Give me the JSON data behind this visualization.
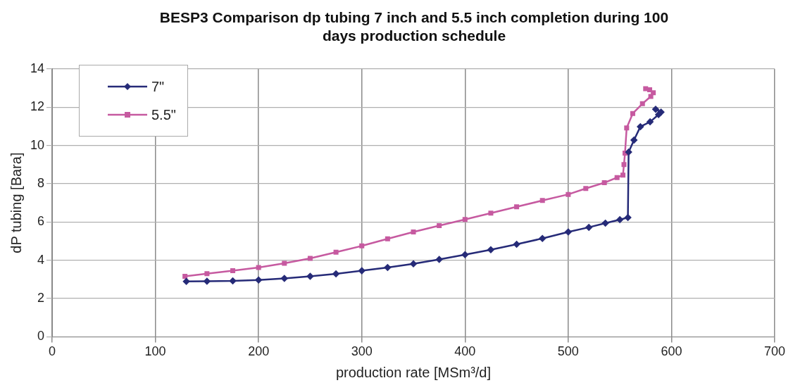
{
  "chart_data": {
    "type": "line",
    "title": "BESP3 Comparison dp tubing 7 inch and 5.5 inch completion during 100 days production schedule",
    "xlabel": "production rate [MSm³/d]",
    "ylabel": "dP tubing [Bara]",
    "xlim": [
      0,
      700
    ],
    "xticks": [
      0,
      100,
      200,
      300,
      400,
      500,
      600,
      700
    ],
    "ylim": [
      0,
      14
    ],
    "yticks": [
      0,
      2,
      4,
      6,
      8,
      10,
      12,
      14
    ],
    "grid": true,
    "legend": "top left",
    "series": [
      {
        "name": "7\"",
        "color": "#262b78",
        "marker": "diamond",
        "x": [
          130,
          150,
          175,
          200,
          225,
          250,
          275,
          300,
          325,
          350,
          375,
          400,
          425,
          450,
          475,
          500,
          520,
          536,
          550,
          557.8,
          558.5,
          563.7,
          569.9,
          579.3,
          587.5,
          589.9,
          584.7
        ],
        "values": [
          2.89,
          2.9,
          2.92,
          2.97,
          3.05,
          3.16,
          3.29,
          3.45,
          3.62,
          3.81,
          4.04,
          4.29,
          4.55,
          4.83,
          5.14,
          5.48,
          5.72,
          5.94,
          6.12,
          6.23,
          9.65,
          10.28,
          10.98,
          11.23,
          11.61,
          11.74,
          11.89
        ]
      },
      {
        "name": "5.5\"",
        "color": "#c65aa0",
        "marker": "square",
        "x": [
          128.7,
          150,
          175,
          200,
          225,
          250,
          275,
          300,
          325,
          350,
          375,
          400,
          425,
          450,
          475,
          500,
          517,
          535,
          547.3,
          553,
          554,
          555,
          556.6,
          562.5,
          571.9,
          580,
          582.4,
          578.9,
          575
        ],
        "values": [
          3.16,
          3.3,
          3.45,
          3.62,
          3.84,
          4.1,
          4.42,
          4.75,
          5.12,
          5.48,
          5.81,
          6.13,
          6.46,
          6.79,
          7.12,
          7.44,
          7.75,
          8.05,
          8.32,
          8.45,
          9.0,
          9.6,
          10.91,
          11.67,
          12.18,
          12.56,
          12.75,
          12.91,
          12.96
        ]
      }
    ]
  }
}
